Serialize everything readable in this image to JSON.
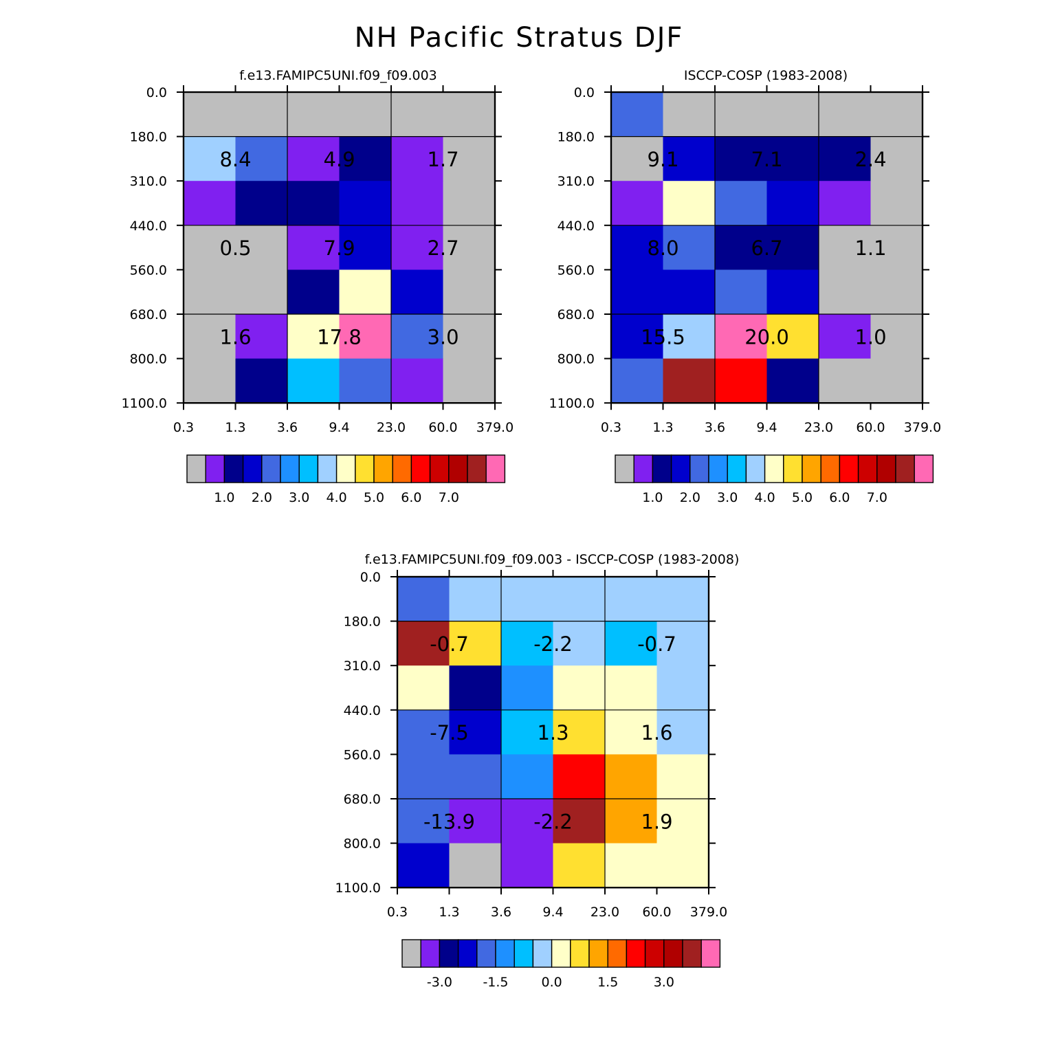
{
  "figure": {
    "title": "NH Pacific Stratus DJF"
  },
  "chart_data": [
    {
      "type": "heatmap",
      "name": "model",
      "title": "f.e13.FAMIPC5UNI.f09_f09.003",
      "x_ticks": [
        "0.3",
        "1.3",
        "3.6",
        "9.4",
        "23.0",
        "60.0",
        "379.0"
      ],
      "y_ticks": [
        "0.0",
        "180.0",
        "310.0",
        "440.0",
        "560.0",
        "680.0",
        "800.0",
        "1100.0"
      ],
      "grid": true,
      "cell_color_index": [
        [
          0,
          0,
          0,
          0,
          0,
          0
        ],
        [
          7,
          4,
          1,
          2,
          1,
          0
        ],
        [
          1,
          2,
          2,
          3,
          1,
          0
        ],
        [
          0,
          0,
          1,
          3,
          1,
          0
        ],
        [
          0,
          0,
          2,
          8,
          3,
          0
        ],
        [
          0,
          1,
          8,
          16,
          4,
          0
        ],
        [
          0,
          2,
          6,
          4,
          1,
          0
        ]
      ],
      "group_labels": [
        [
          "8.4",
          "4.9",
          "1.7"
        ],
        [
          "0.5",
          "7.9",
          "2.7"
        ],
        [
          "1.6",
          "17.8",
          "3.0"
        ]
      ],
      "colorbar": {
        "ticks": [
          "1.0",
          "2.0",
          "3.0",
          "4.0",
          "5.0",
          "6.0",
          "7.0"
        ]
      }
    },
    {
      "type": "heatmap",
      "name": "observation",
      "title": "ISCCP-COSP (1983-2008)",
      "x_ticks": [
        "0.3",
        "1.3",
        "3.6",
        "9.4",
        "23.0",
        "60.0",
        "379.0"
      ],
      "y_ticks": [
        "0.0",
        "180.0",
        "310.0",
        "440.0",
        "560.0",
        "680.0",
        "800.0",
        "1100.0"
      ],
      "grid": true,
      "cell_color_index": [
        [
          4,
          0,
          0,
          0,
          0,
          0
        ],
        [
          0,
          3,
          2,
          2,
          2,
          0
        ],
        [
          1,
          8,
          4,
          3,
          1,
          0
        ],
        [
          3,
          4,
          2,
          2,
          0,
          0
        ],
        [
          3,
          3,
          4,
          3,
          0,
          0
        ],
        [
          3,
          7,
          16,
          9,
          1,
          0
        ],
        [
          4,
          15,
          12,
          2,
          0,
          0
        ]
      ],
      "group_labels": [
        [
          "9.1",
          "7.1",
          "2.4"
        ],
        [
          "8.0",
          "6.7",
          "1.1"
        ],
        [
          "15.5",
          "20.0",
          "1.0"
        ]
      ],
      "colorbar": {
        "ticks": [
          "1.0",
          "2.0",
          "3.0",
          "4.0",
          "5.0",
          "6.0",
          "7.0"
        ]
      }
    },
    {
      "type": "heatmap",
      "name": "difference",
      "title": "f.e13.FAMIPC5UNI.f09_f09.003 - ISCCP-COSP (1983-2008)",
      "x_ticks": [
        "0.3",
        "1.3",
        "3.6",
        "9.4",
        "23.0",
        "60.0",
        "379.0"
      ],
      "y_ticks": [
        "0.0",
        "180.0",
        "310.0",
        "440.0",
        "560.0",
        "680.0",
        "800.0",
        "1100.0"
      ],
      "grid": true,
      "cell_color_index": [
        [
          4,
          7,
          7,
          7,
          7,
          7
        ],
        [
          15,
          9,
          6,
          7,
          6,
          7
        ],
        [
          8,
          2,
          5,
          8,
          8,
          7
        ],
        [
          4,
          3,
          6,
          9,
          8,
          7
        ],
        [
          4,
          4,
          5,
          12,
          10,
          8
        ],
        [
          4,
          1,
          1,
          15,
          10,
          8
        ],
        [
          3,
          0,
          1,
          9,
          8,
          8
        ]
      ],
      "group_labels": [
        [
          "-0.7",
          "-2.2",
          "-0.7"
        ],
        [
          "-7.5",
          "1.3",
          "1.6"
        ],
        [
          "-13.9",
          "-2.2",
          "1.9"
        ]
      ],
      "colorbar": {
        "ticks": [
          "-3.0",
          "-1.5",
          "0.0",
          "1.5",
          "3.0"
        ]
      }
    }
  ],
  "palette": [
    "#bebebe",
    "#8020f0",
    "#00008b",
    "#0000cd",
    "#4169e1",
    "#1e90ff",
    "#00bfff",
    "#a0d0ff",
    "#ffffc8",
    "#ffe030",
    "#ffa500",
    "#ff6a00",
    "#ff0000",
    "#cd0000",
    "#b00000",
    "#a02020",
    "#ff69b4"
  ]
}
